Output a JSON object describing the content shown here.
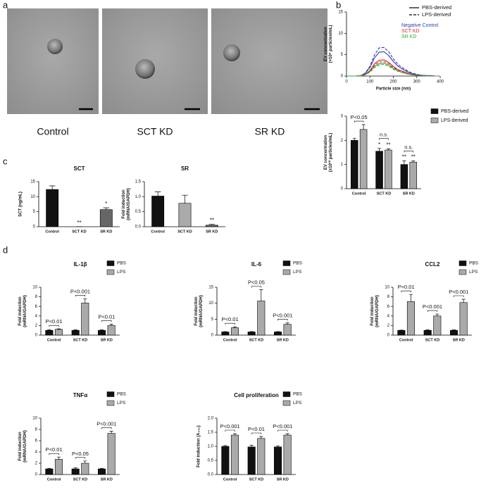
{
  "figure": {
    "panel_labels": [
      "a",
      "b",
      "c",
      "d"
    ],
    "image_captions": [
      "Control",
      "SCT KD",
      "SR KD"
    ]
  },
  "chart_data": [
    {
      "type": "line",
      "xlabel": "Particle size (nm)",
      "ylabel": [
        "EV concentration",
        "(×10⁸ particles/mL)"
      ],
      "x": [
        0,
        20,
        40,
        60,
        80,
        100,
        120,
        140,
        160,
        180,
        200,
        220,
        240,
        260,
        280,
        300,
        320,
        340,
        360,
        380,
        400
      ],
      "xlim": [
        0,
        400
      ],
      "xticks": [
        0,
        100,
        200,
        300,
        400
      ],
      "ylim": [
        0,
        15
      ],
      "yticks": [
        0,
        5,
        10,
        15
      ],
      "legend": [
        "PBS-derived",
        "LPS-derived"
      ],
      "series": [
        {
          "name": "Negative Control",
          "color": "#2a3fb5",
          "values": [
            0,
            0,
            0,
            0.1,
            0.6,
            2.0,
            4.3,
            5.6,
            5.7,
            4.8,
            3.4,
            2.3,
            1.6,
            1.0,
            0.6,
            0.3,
            0.2,
            0.1,
            0.1,
            0,
            0
          ],
          "values_lps": [
            0,
            0,
            0,
            0.1,
            0.7,
            2.3,
            5.0,
            6.6,
            6.7,
            5.7,
            4.0,
            2.7,
            1.9,
            1.2,
            0.7,
            0.4,
            0.2,
            0.1,
            0.1,
            0,
            0
          ]
        },
        {
          "name": "SCT KD",
          "color": "#e0282a",
          "values": [
            0,
            0,
            0,
            0.1,
            0.4,
            1.3,
            2.9,
            3.7,
            3.8,
            3.2,
            2.3,
            1.5,
            1.1,
            0.7,
            0.4,
            0.2,
            0.1,
            0.1,
            0,
            0,
            0
          ],
          "values_lps": [
            0,
            0,
            0,
            0.1,
            0.3,
            1.2,
            2.6,
            3.3,
            3.4,
            2.9,
            2.0,
            1.4,
            1.0,
            0.6,
            0.3,
            0.2,
            0.1,
            0.1,
            0,
            0,
            0
          ]
        },
        {
          "name": "SR KD",
          "color": "#2ea83a",
          "values": [
            0,
            0,
            0,
            0.1,
            0.3,
            1.1,
            2.3,
            2.9,
            3.0,
            2.6,
            1.8,
            1.2,
            0.8,
            0.5,
            0.3,
            0.2,
            0.1,
            0,
            0,
            0,
            0
          ],
          "values_lps": [
            0,
            0,
            0,
            0,
            0.3,
            0.9,
            2.0,
            2.6,
            2.7,
            2.3,
            1.6,
            1.1,
            0.8,
            0.5,
            0.3,
            0.2,
            0.1,
            0,
            0,
            0,
            0
          ]
        }
      ]
    },
    {
      "type": "bar",
      "ylabel": [
        "EV concentration",
        "(x10¹⁰ particles/mL)"
      ],
      "categories": [
        "Control",
        "SCT KD",
        "SR KD"
      ],
      "ylim": [
        0,
        3
      ],
      "yticks": [
        0,
        1,
        2,
        3
      ],
      "brackets": [
        "P<0.05",
        "n.s.",
        "n.s."
      ],
      "series": [
        {
          "name": "PBS-derived",
          "color": "#111111",
          "values": [
            2.0,
            1.55,
            1.0
          ],
          "errors": [
            0.08,
            0.12,
            0.15
          ],
          "stars": [
            null,
            "*",
            "**"
          ]
        },
        {
          "name": "LPS-derived",
          "color": "#aaaaaa",
          "values": [
            2.45,
            1.6,
            1.1
          ],
          "errors": [
            0.2,
            0.05,
            0.05
          ],
          "stars": [
            null,
            "**",
            "**"
          ]
        }
      ]
    },
    {
      "type": "bar",
      "title": "SCT",
      "ylabel": [
        "SCT (ng/mL)"
      ],
      "categories": [
        "Control",
        "SCT KD",
        "SR KD"
      ],
      "ylim": [
        0,
        15
      ],
      "yticks": [
        0,
        5,
        10,
        15
      ],
      "values": [
        12.4,
        0,
        5.7
      ],
      "errors": [
        1.2,
        0,
        0.6
      ],
      "colors": [
        "#111111",
        "#111111",
        "#666666"
      ],
      "stars": [
        null,
        "**",
        "*"
      ]
    },
    {
      "type": "bar",
      "title": "SR",
      "ylabel": [
        "Fold induction",
        "(mRNA/GAPDH)"
      ],
      "categories": [
        "Control",
        "SCT KD",
        "SR KD"
      ],
      "ylim": [
        0,
        1.5
      ],
      "yticks": [
        {
          "value": 0,
          "label": "0.0"
        },
        0.5,
        {
          "value": 1,
          "label": "1.0"
        },
        1.5
      ],
      "values": [
        1.02,
        0.78,
        0.05
      ],
      "errors": [
        0.14,
        0.27,
        0.03
      ],
      "colors": [
        "#111111",
        "#aaaaaa",
        "#666666"
      ],
      "stars": [
        null,
        null,
        "**"
      ]
    },
    {
      "type": "bar",
      "title": "IL-1β",
      "ylabel": [
        "Fold induction",
        "(mRNA/GAPDH)"
      ],
      "categories": [
        "Control",
        "SCT KD",
        "SR KD"
      ],
      "ylim": [
        0,
        10
      ],
      "yticks": [
        0,
        2,
        4,
        6,
        8,
        10
      ],
      "brackets": [
        "P<0.01",
        "P<0.001",
        "P<0.01"
      ],
      "series": [
        {
          "name": "PBS",
          "color": "#111111",
          "values": [
            1.0,
            1.0,
            1.0
          ],
          "errors": [
            0.1,
            0.1,
            0.1
          ]
        },
        {
          "name": "LPS",
          "color": "#aaaaaa",
          "values": [
            1.2,
            6.7,
            2.0
          ],
          "errors": [
            0.1,
            0.9,
            0.3
          ]
        }
      ]
    },
    {
      "type": "bar",
      "title": "IL-6",
      "ylabel": [
        "Fold induction",
        "(mRNA/GAPDH)"
      ],
      "categories": [
        "Control",
        "SCT KD",
        "SR KD"
      ],
      "ylim": [
        0,
        15
      ],
      "yticks": [
        0,
        5,
        10,
        15
      ],
      "brackets": [
        "P<0.01",
        "P<0.05",
        "P<0.001"
      ],
      "series": [
        {
          "name": "PBS",
          "color": "#111111",
          "values": [
            1.0,
            1.0,
            1.0
          ],
          "errors": [
            0.1,
            0.1,
            0.1
          ]
        },
        {
          "name": "LPS",
          "color": "#aaaaaa",
          "values": [
            2.3,
            10.7,
            3.4
          ],
          "errors": [
            0.3,
            3.5,
            0.5
          ]
        }
      ]
    },
    {
      "type": "bar",
      "title": "CCL2",
      "ylabel": [
        "Fold induction",
        "(mRNA/GAPDH)"
      ],
      "categories": [
        "Control",
        "SCT KD",
        "SR KD"
      ],
      "ylim": [
        0,
        10
      ],
      "yticks": [
        0,
        2,
        4,
        6,
        8,
        10
      ],
      "brackets": [
        "P<0.01",
        "P<0.001",
        "P<0.001"
      ],
      "series": [
        {
          "name": "PBS",
          "color": "#111111",
          "values": [
            1.0,
            1.0,
            1.0
          ],
          "errors": [
            0.05,
            0.1,
            0.1
          ]
        },
        {
          "name": "LPS",
          "color": "#aaaaaa",
          "values": [
            7.0,
            4.0,
            6.8
          ],
          "errors": [
            1.5,
            0.4,
            0.7
          ]
        }
      ]
    },
    {
      "type": "bar",
      "title": "TNFα",
      "ylabel": [
        "Fold induction",
        "(mRNA/GAPDH)"
      ],
      "categories": [
        "Control",
        "SCT KD",
        "SR KD"
      ],
      "ylim": [
        0,
        10
      ],
      "yticks": [
        0,
        2,
        4,
        6,
        8,
        10
      ],
      "brackets": [
        "P<0.01",
        "P<0.05",
        "P<0.001"
      ],
      "series": [
        {
          "name": "PBS",
          "color": "#111111",
          "values": [
            1.0,
            1.0,
            1.0
          ],
          "errors": [
            0.1,
            0.2,
            0.1
          ]
        },
        {
          "name": "LPS",
          "color": "#aaaaaa",
          "values": [
            2.7,
            2.0,
            7.3
          ],
          "errors": [
            0.4,
            0.4,
            0.4
          ]
        }
      ]
    },
    {
      "type": "bar",
      "title": "Cell proliferation",
      "ylabel": [
        "Fold induction (A₄₅₀)"
      ],
      "categories": [
        "Control",
        "SCT KD",
        "SR KD"
      ],
      "ylim": [
        0,
        2
      ],
      "yticks": [
        {
          "value": 0,
          "label": "0.0"
        },
        0.5,
        {
          "value": 1,
          "label": "1.0"
        },
        1.5,
        {
          "value": 2,
          "label": "2.0"
        }
      ],
      "brackets": [
        "P<0.001",
        "P<0.01",
        "P<0.001"
      ],
      "series": [
        {
          "name": "PBS",
          "color": "#111111",
          "values": [
            1.0,
            0.98,
            0.98
          ],
          "errors": [
            0.03,
            0.06,
            0.04
          ]
        },
        {
          "name": "LPS",
          "color": "#aaaaaa",
          "values": [
            1.4,
            1.28,
            1.4
          ],
          "errors": [
            0.05,
            0.07,
            0.05
          ]
        }
      ]
    }
  ]
}
